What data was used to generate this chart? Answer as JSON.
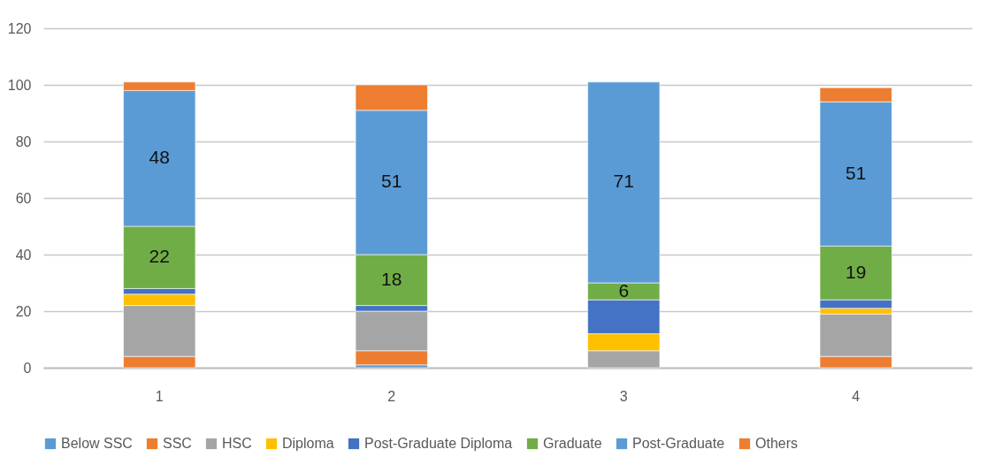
{
  "chart_data": {
    "type": "bar",
    "stacked": true,
    "categories": [
      "1",
      "2",
      "3",
      "4"
    ],
    "series": [
      {
        "name": "Below SSC",
        "color": "#5b9bd5",
        "values": [
          0,
          1,
          0,
          0
        ]
      },
      {
        "name": "SSC",
        "color": "#ed7d31",
        "values": [
          4,
          5,
          0,
          4
        ]
      },
      {
        "name": "HSC",
        "color": "#a5a5a5",
        "values": [
          18,
          14,
          6,
          15
        ]
      },
      {
        "name": "Diploma",
        "color": "#ffc000",
        "values": [
          4,
          0,
          6,
          2
        ]
      },
      {
        "name": "Post-Graduate Diploma",
        "color": "#4472c4",
        "values": [
          2,
          2,
          12,
          3
        ]
      },
      {
        "name": "Graduate",
        "color": "#70ad47",
        "values": [
          22,
          18,
          6,
          19
        ],
        "value_labels": [
          "22",
          "18",
          "6",
          "19"
        ]
      },
      {
        "name": "Post-Graduate",
        "color": "#5b9bd5",
        "values": [
          48,
          51,
          71,
          51
        ],
        "value_labels": [
          "48",
          "51",
          "71",
          "51"
        ]
      },
      {
        "name": "Others",
        "color": "#ed7d31",
        "values": [
          3,
          9,
          0,
          5
        ]
      }
    ],
    "ylim": [
      0,
      120
    ],
    "yticks": [
      0,
      20,
      40,
      60,
      80,
      100,
      120
    ],
    "grid": "y",
    "legend": "bottom"
  }
}
